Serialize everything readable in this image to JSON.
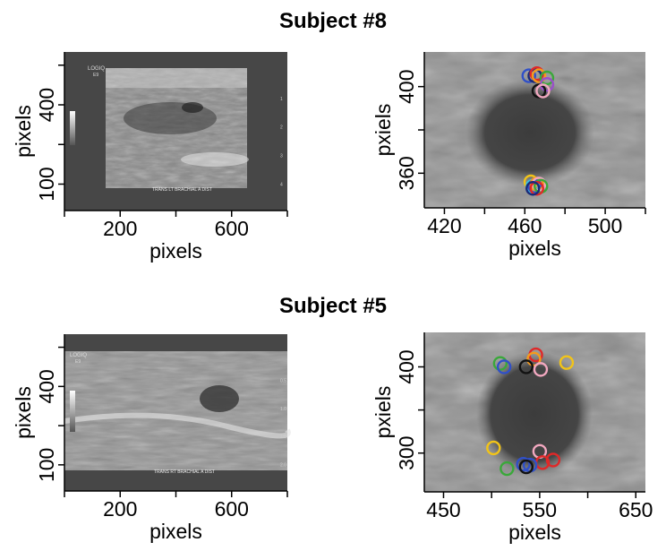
{
  "figure": {
    "top_title": "Subject #8",
    "bottom_title": "Subject #5"
  },
  "marker_colors": {
    "blue": "#3050c8",
    "red": "#e02828",
    "orange": "#f59a1c",
    "green": "#3aa83a",
    "black": "#111111",
    "pink": "#f2a8c0",
    "purple": "#9a50c8",
    "yellow": "#f2c418",
    "navy": "#1a2a7a",
    "cyan": "#30c8e8"
  },
  "chart_data": [
    {
      "id": "s8-image",
      "type": "image",
      "xlabel": "pixels",
      "ylabel": "pixels",
      "xlim": [
        0,
        800
      ],
      "ylim": [
        0,
        600
      ],
      "xticks": [
        200,
        600
      ],
      "yticks": [
        100,
        400
      ],
      "image_labels": {
        "logo": "LOGIQ",
        "sub": "E9",
        "caption": "TRANS LT BRACHIAL A DIST",
        "depth_ticks": [
          "1",
          "2",
          "3",
          "4"
        ]
      }
    },
    {
      "id": "s8-zoom",
      "type": "scatter",
      "xlabel": "pixels",
      "ylabel": "pxiels",
      "xlim": [
        410,
        520
      ],
      "ylim": [
        344,
        416
      ],
      "xticks": [
        420,
        460,
        500
      ],
      "yticks": [
        360,
        400
      ],
      "points": [
        {
          "x": 462,
          "y": 405,
          "color": "blue"
        },
        {
          "x": 465,
          "y": 405,
          "color": "navy"
        },
        {
          "x": 466,
          "y": 406,
          "color": "red"
        },
        {
          "x": 467,
          "y": 405,
          "color": "orange"
        },
        {
          "x": 471,
          "y": 404,
          "color": "green"
        },
        {
          "x": 471,
          "y": 401,
          "color": "purple"
        },
        {
          "x": 467,
          "y": 398,
          "color": "black"
        },
        {
          "x": 469,
          "y": 398,
          "color": "pink"
        },
        {
          "x": 463,
          "y": 356,
          "color": "yellow"
        },
        {
          "x": 464,
          "y": 354,
          "color": "cyan"
        },
        {
          "x": 465,
          "y": 354,
          "color": "blue"
        },
        {
          "x": 466,
          "y": 355,
          "color": "orange"
        },
        {
          "x": 467,
          "y": 355,
          "color": "pink"
        },
        {
          "x": 468,
          "y": 354,
          "color": "green"
        },
        {
          "x": 466,
          "y": 353,
          "color": "red"
        },
        {
          "x": 464,
          "y": 353,
          "color": "navy"
        }
      ]
    },
    {
      "id": "s5-image",
      "type": "image",
      "xlabel": "pixels",
      "ylabel": "pixels",
      "xlim": [
        0,
        800
      ],
      "ylim": [
        0,
        600
      ],
      "xticks": [
        200,
        600
      ],
      "yticks": [
        100,
        400
      ],
      "image_labels": {
        "logo": "LOGIQ",
        "sub": "E9",
        "caption": "TRANS RT BRACHIAL A DIST",
        "depth_ticks": [
          "0.5",
          "1.0",
          "1.5",
          "2.0"
        ]
      }
    },
    {
      "id": "s5-zoom",
      "type": "scatter",
      "xlabel": "pixels",
      "ylabel": "pxiels",
      "xlim": [
        430,
        660
      ],
      "ylim": [
        255,
        440
      ],
      "xticks": [
        450,
        550,
        650
      ],
      "yticks": [
        300,
        400
      ],
      "points": [
        {
          "x": 546,
          "y": 414,
          "color": "red"
        },
        {
          "x": 544,
          "y": 409,
          "color": "orange"
        },
        {
          "x": 578,
          "y": 405,
          "color": "yellow"
        },
        {
          "x": 509,
          "y": 404,
          "color": "green"
        },
        {
          "x": 513,
          "y": 400,
          "color": "blue"
        },
        {
          "x": 536,
          "y": 400,
          "color": "black"
        },
        {
          "x": 551,
          "y": 397,
          "color": "pink"
        },
        {
          "x": 502,
          "y": 306,
          "color": "yellow"
        },
        {
          "x": 550,
          "y": 302,
          "color": "pink"
        },
        {
          "x": 564,
          "y": 292,
          "color": "red"
        },
        {
          "x": 553,
          "y": 289,
          "color": "red"
        },
        {
          "x": 533,
          "y": 287,
          "color": "blue"
        },
        {
          "x": 540,
          "y": 286,
          "color": "blue"
        },
        {
          "x": 536,
          "y": 284,
          "color": "black"
        },
        {
          "x": 516,
          "y": 282,
          "color": "green"
        }
      ]
    }
  ]
}
